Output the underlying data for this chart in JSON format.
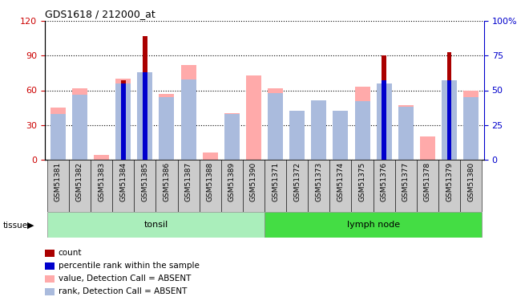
{
  "title": "GDS1618 / 212000_at",
  "samples": [
    "GSM51381",
    "GSM51382",
    "GSM51383",
    "GSM51384",
    "GSM51385",
    "GSM51386",
    "GSM51387",
    "GSM51388",
    "GSM51389",
    "GSM51390",
    "GSM51371",
    "GSM51372",
    "GSM51373",
    "GSM51374",
    "GSM51375",
    "GSM51376",
    "GSM51377",
    "GSM51378",
    "GSM51379",
    "GSM51380"
  ],
  "groups": [
    {
      "label": "tonsil",
      "start": 0,
      "end": 9,
      "color": "#AAEEBB"
    },
    {
      "label": "lymph node",
      "start": 10,
      "end": 19,
      "color": "#44DD44"
    }
  ],
  "value_bars": [
    45,
    62,
    4,
    70,
    0,
    57,
    82,
    6,
    40,
    73,
    62,
    40,
    47,
    38,
    63,
    0,
    47,
    20,
    0,
    60
  ],
  "rank_bars": [
    33,
    47,
    0,
    55,
    63,
    45,
    58,
    0,
    33,
    0,
    48,
    35,
    43,
    35,
    42,
    55,
    38,
    0,
    57,
    45
  ],
  "count_bars": [
    0,
    0,
    0,
    69,
    107,
    0,
    0,
    0,
    0,
    0,
    0,
    0,
    0,
    0,
    0,
    90,
    0,
    0,
    93,
    0
  ],
  "percentile_bars": [
    0,
    0,
    0,
    55,
    63,
    0,
    0,
    0,
    0,
    0,
    0,
    0,
    0,
    0,
    0,
    57,
    0,
    0,
    57,
    0
  ],
  "ylim_left": [
    0,
    120
  ],
  "ylim_right": [
    0,
    100
  ],
  "yticks_left": [
    0,
    30,
    60,
    90,
    120
  ],
  "yticks_right": [
    0,
    25,
    50,
    75,
    100
  ],
  "color_count": "#AA0000",
  "color_percentile": "#0000CC",
  "color_value_absent": "#FFAAAA",
  "color_rank_absent": "#AABBDD",
  "ylabel_left_color": "#CC0000",
  "ylabel_right_color": "#0000CC",
  "legend_items": [
    {
      "label": "count",
      "color": "#AA0000"
    },
    {
      "label": "percentile rank within the sample",
      "color": "#0000CC"
    },
    {
      "label": "value, Detection Call = ABSENT",
      "color": "#FFAAAA"
    },
    {
      "label": "rank, Detection Call = ABSENT",
      "color": "#AABBDD"
    }
  ]
}
